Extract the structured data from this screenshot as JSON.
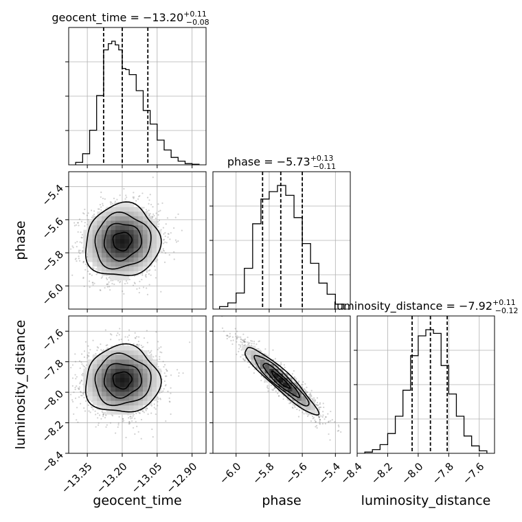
{
  "chart_data": {
    "type": "corner",
    "parameters": [
      "geocent_time",
      "phase",
      "luminosity_distance"
    ],
    "grid": true,
    "titles": [
      {
        "param": "geocent_time",
        "median": "−13.20",
        "plus": "+0.11",
        "minus": "−0.08"
      },
      {
        "param": "phase",
        "median": "−5.73",
        "plus": "+0.13",
        "minus": "−0.11"
      },
      {
        "param": "luminosity_distance",
        "median": "−7.92",
        "plus": "+0.11",
        "minus": "−0.12"
      }
    ],
    "ranges": {
      "geocent_time": [
        -13.43,
        -12.84
      ],
      "phase": [
        -6.14,
        -5.31
      ],
      "luminosity_distance": [
        -8.4,
        -7.5
      ]
    },
    "ticks": {
      "geocent_time": {
        "values": [
          -13.35,
          -13.2,
          -13.05,
          -12.9
        ],
        "labels": [
          "−13.35",
          "−13.20",
          "−13.05",
          "−12.90"
        ]
      },
      "phase": {
        "values": [
          -6.0,
          -5.8,
          -5.6,
          -5.4
        ],
        "labels": [
          "−6.0",
          "−5.8",
          "−5.6",
          "−5.4"
        ]
      },
      "luminosity_distance": {
        "values": [
          -8.4,
          -8.2,
          -8.0,
          -7.8,
          -7.6
        ],
        "labels": [
          "−8.4",
          "−8.2",
          "−8.0",
          "−7.8",
          "−7.6"
        ]
      }
    },
    "quantiles": {
      "geocent_time": [
        -13.28,
        -13.2,
        -13.09
      ],
      "phase": [
        -5.84,
        -5.73,
        -5.6
      ],
      "luminosity_distance": [
        -8.04,
        -7.92,
        -7.81
      ]
    },
    "histograms": {
      "geocent_time": {
        "edges": [
          -13.4,
          -13.37,
          -13.34,
          -13.31,
          -13.28,
          -13.26,
          -13.245,
          -13.23,
          -13.215,
          -13.2,
          -13.185,
          -13.17,
          -13.14,
          -13.11,
          -13.08,
          -13.05,
          -13.02,
          -12.99,
          -12.96,
          -12.93,
          -12.9,
          -12.87
        ],
        "counts": [
          0.02,
          0.09,
          0.28,
          0.56,
          0.93,
          0.98,
          1.0,
          0.97,
          0.93,
          0.78,
          0.77,
          0.73,
          0.6,
          0.44,
          0.33,
          0.2,
          0.12,
          0.06,
          0.03,
          0.01,
          0.005
        ]
      },
      "phase": {
        "edges": [
          -6.1,
          -6.05,
          -6.0,
          -5.95,
          -5.9,
          -5.85,
          -5.8,
          -5.75,
          -5.7,
          -5.65,
          -5.6,
          -5.55,
          -5.5,
          -5.45,
          -5.4,
          -5.35
        ],
        "counts": [
          0.02,
          0.05,
          0.13,
          0.33,
          0.69,
          0.89,
          0.95,
          1.0,
          0.92,
          0.74,
          0.53,
          0.37,
          0.21,
          0.12,
          0.04
        ]
      },
      "luminosity_distance": {
        "edges": [
          -8.35,
          -8.3,
          -8.25,
          -8.2,
          -8.15,
          -8.1,
          -8.05,
          -8.0,
          -7.95,
          -7.9,
          -7.85,
          -7.8,
          -7.75,
          -7.7,
          -7.65,
          -7.6,
          -7.55
        ],
        "counts": [
          0.01,
          0.03,
          0.07,
          0.16,
          0.3,
          0.51,
          0.79,
          0.95,
          1.0,
          0.97,
          0.71,
          0.48,
          0.3,
          0.14,
          0.06,
          0.02
        ]
      }
    },
    "correlations": {
      "geocent_time|phase": 0.05,
      "geocent_time|luminosity_distance": 0.02,
      "phase|luminosity_distance": -0.93
    },
    "sigmas": {
      "geocent_time": 0.08,
      "phase": 0.11,
      "luminosity_distance": 0.11
    }
  }
}
